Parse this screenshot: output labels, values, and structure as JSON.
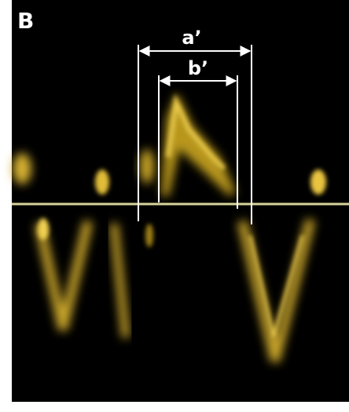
{
  "panel_label": "B",
  "measurements": [
    {
      "label": "a’"
    },
    {
      "label": "b’"
    }
  ]
}
